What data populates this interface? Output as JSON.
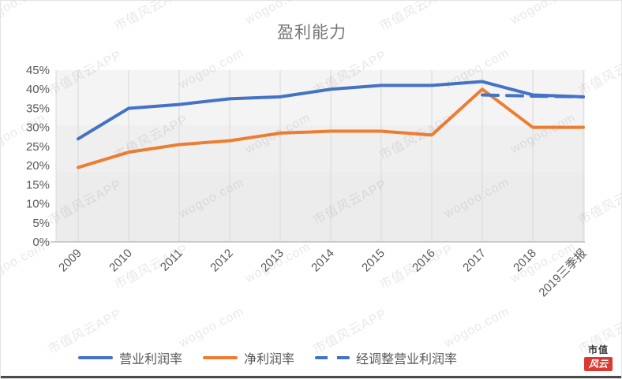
{
  "chart_data": {
    "type": "line",
    "title": "盈利能力",
    "categories": [
      "2009",
      "2010",
      "2011",
      "2012",
      "2013",
      "2014",
      "2015",
      "2016",
      "2017",
      "2018",
      "2019三季报"
    ],
    "series": [
      {
        "name": "营业利润率",
        "color": "#4472C4",
        "style": "solid",
        "values": [
          27,
          35,
          36,
          37.5,
          38,
          40,
          41,
          41,
          42,
          38.5,
          38
        ]
      },
      {
        "name": "净利润率",
        "color": "#ED7D31",
        "style": "solid",
        "values": [
          19.5,
          23.5,
          25.5,
          26.5,
          28.5,
          29,
          29,
          28,
          40,
          30,
          30
        ]
      },
      {
        "name": "经调整营业利润率",
        "color": "#4472C4",
        "style": "dashed",
        "values": [
          null,
          null,
          null,
          null,
          null,
          null,
          null,
          null,
          38.5,
          38.2,
          38
        ]
      }
    ],
    "xlabel": "",
    "ylabel": "",
    "ylim": [
      0,
      45
    ],
    "yticks": [
      0,
      5,
      10,
      15,
      20,
      25,
      30,
      35,
      40,
      45
    ],
    "ytick_format": "percent",
    "grid": "vertical-only",
    "legend_position": "bottom"
  },
  "watermark": {
    "texts": [
      "wogoo.com",
      "市值风云APP"
    ],
    "color": "rgba(120,120,120,0.17)"
  },
  "logo": {
    "top": "市值",
    "bottom": "风云",
    "box_color": "#D93A32"
  },
  "colors": {
    "plot_bg": "#ECECEC",
    "gridline": "#D9D9D9",
    "axis_line": "#BFBFBF",
    "tick_text": "#595959",
    "title_text": "#757575",
    "bottom_bar": "#4A4A4A"
  }
}
